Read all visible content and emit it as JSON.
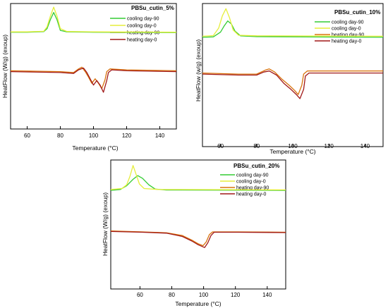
{
  "colors": {
    "cooling_day_90": "#33cc33",
    "cooling_day_0": "#e6ee3b",
    "heating_day_90": "#d9730d",
    "heating_day_0": "#a01818"
  },
  "chart_data": [
    {
      "type": "line",
      "title": "PBSu_cutin_5%",
      "xlabel": "Temperature (°C)",
      "ylabel": "HeatFlow (W/g) (exoup)",
      "xlim": [
        50,
        150
      ],
      "x_ticks": [
        "60",
        "80",
        "100",
        "120",
        "140"
      ],
      "x_tick_values": [
        60,
        80,
        100,
        120,
        140
      ],
      "ylim": [
        -4.5,
        2.5
      ],
      "grid": false,
      "legend_position": "top-right",
      "series": [
        {
          "name": "cooling day-90",
          "color_key": "cooling_day_90",
          "points": [
            [
              50,
              0.9
            ],
            [
              60,
              0.9
            ],
            [
              70,
              0.93
            ],
            [
              72,
              1.1
            ],
            [
              74,
              1.6
            ],
            [
              76,
              2.0
            ],
            [
              78,
              1.6
            ],
            [
              80,
              1.0
            ],
            [
              84,
              0.92
            ],
            [
              100,
              0.9
            ],
            [
              150,
              0.88
            ]
          ]
        },
        {
          "name": "cooling day-0",
          "color_key": "cooling_day_0",
          "points": [
            [
              50,
              0.92
            ],
            [
              60,
              0.92
            ],
            [
              70,
              0.95
            ],
            [
              72,
              1.2
            ],
            [
              74,
              1.8
            ],
            [
              76,
              2.3
            ],
            [
              78,
              1.8
            ],
            [
              80,
              1.1
            ],
            [
              84,
              0.94
            ],
            [
              100,
              0.92
            ],
            [
              150,
              0.9
            ]
          ]
        },
        {
          "name": "heating day-90",
          "color_key": "heating_day_90",
          "points": [
            [
              50,
              -1.25
            ],
            [
              80,
              -1.3
            ],
            [
              88,
              -1.35
            ],
            [
              91,
              -1.15
            ],
            [
              93,
              -1.05
            ],
            [
              95,
              -1.3
            ],
            [
              97,
              -1.6
            ],
            [
              99,
              -1.95
            ],
            [
              101,
              -1.7
            ],
            [
              103,
              -1.95
            ],
            [
              105,
              -2.25
            ],
            [
              107,
              -1.75
            ],
            [
              108,
              -1.3
            ],
            [
              110,
              -1.15
            ],
            [
              120,
              -1.2
            ],
            [
              150,
              -1.25
            ]
          ]
        },
        {
          "name": "heating day-0",
          "color_key": "heating_day_0",
          "points": [
            [
              50,
              -1.3
            ],
            [
              80,
              -1.35
            ],
            [
              88,
              -1.4
            ],
            [
              91,
              -1.2
            ],
            [
              94,
              -1.1
            ],
            [
              96,
              -1.35
            ],
            [
              98,
              -1.7
            ],
            [
              100,
              -2.05
            ],
            [
              102,
              -1.8
            ],
            [
              104,
              -2.05
            ],
            [
              106,
              -2.45
            ],
            [
              108,
              -1.8
            ],
            [
              109,
              -1.35
            ],
            [
              111,
              -1.2
            ],
            [
              120,
              -1.25
            ],
            [
              150,
              -1.3
            ]
          ]
        }
      ]
    },
    {
      "type": "line",
      "title": "PBSu_cutin_10%",
      "xlabel": "Temperature (°C)",
      "ylabel": "HeatFlow (w/g) (exoup)",
      "xlim": [
        50,
        150
      ],
      "x_ticks": [
        "60",
        "80",
        "100",
        "120",
        "140"
      ],
      "x_tick_values": [
        60,
        80,
        100,
        120,
        140
      ],
      "ylim": [
        -4.5,
        2.5
      ],
      "grid": false,
      "legend_position": "top-right",
      "series": [
        {
          "name": "cooling day-90",
          "color_key": "cooling_day_90",
          "points": [
            [
              50,
              0.85
            ],
            [
              56,
              0.87
            ],
            [
              60,
              1.1
            ],
            [
              62,
              1.4
            ],
            [
              64,
              1.65
            ],
            [
              66,
              1.5
            ],
            [
              68,
              1.15
            ],
            [
              71,
              0.92
            ],
            [
              80,
              0.88
            ],
            [
              150,
              0.85
            ]
          ]
        },
        {
          "name": "cooling day-0",
          "color_key": "cooling_day_0",
          "points": [
            [
              50,
              0.9
            ],
            [
              56,
              0.93
            ],
            [
              59,
              1.3
            ],
            [
              61,
              1.9
            ],
            [
              63,
              2.25
            ],
            [
              65,
              1.8
            ],
            [
              67,
              1.2
            ],
            [
              70,
              0.95
            ],
            [
              80,
              0.92
            ],
            [
              150,
              0.9
            ]
          ]
        },
        {
          "name": "heating day-90",
          "color_key": "heating_day_90",
          "points": [
            [
              50,
              -0.9
            ],
            [
              70,
              -0.95
            ],
            [
              80,
              -0.95
            ],
            [
              85,
              -0.75
            ],
            [
              87,
              -0.7
            ],
            [
              90,
              -0.85
            ],
            [
              94,
              -1.2
            ],
            [
              98,
              -1.5
            ],
            [
              101,
              -1.75
            ],
            [
              103,
              -1.95
            ],
            [
              105,
              -1.5
            ],
            [
              106,
              -0.95
            ],
            [
              108,
              -0.8
            ],
            [
              120,
              -0.8
            ],
            [
              150,
              -0.8
            ]
          ]
        },
        {
          "name": "heating day-0",
          "color_key": "heating_day_0",
          "points": [
            [
              50,
              -0.95
            ],
            [
              70,
              -1.0
            ],
            [
              80,
              -1.0
            ],
            [
              84,
              -0.85
            ],
            [
              87,
              -0.8
            ],
            [
              91,
              -1.0
            ],
            [
              95,
              -1.4
            ],
            [
              99,
              -1.7
            ],
            [
              102,
              -1.95
            ],
            [
              104,
              -2.15
            ],
            [
              106,
              -1.7
            ],
            [
              107,
              -1.05
            ],
            [
              109,
              -0.9
            ],
            [
              120,
              -0.9
            ],
            [
              150,
              -0.9
            ]
          ]
        }
      ]
    },
    {
      "type": "line",
      "title": "PBSu_cutin_20%",
      "xlabel": "Temperature (°C)",
      "ylabel": "HeatFlow (W/g) (exoup)",
      "xlim": [
        40,
        150
      ],
      "x_ticks": [
        "60",
        "80",
        "100",
        "120",
        "140"
      ],
      "x_tick_values": [
        60,
        80,
        100,
        120,
        140
      ],
      "ylim": [
        -4.5,
        2.5
      ],
      "grid": false,
      "legend_position": "top-right",
      "series": [
        {
          "name": "cooling day-90",
          "color_key": "cooling_day_90",
          "points": [
            [
              40,
              0.85
            ],
            [
              46,
              0.9
            ],
            [
              50,
              1.1
            ],
            [
              54,
              1.45
            ],
            [
              57,
              1.65
            ],
            [
              60,
              1.5
            ],
            [
              64,
              1.15
            ],
            [
              68,
              0.92
            ],
            [
              75,
              0.87
            ],
            [
              150,
              0.85
            ]
          ]
        },
        {
          "name": "cooling day-0",
          "color_key": "cooling_day_0",
          "points": [
            [
              40,
              0.9
            ],
            [
              47,
              0.95
            ],
            [
              50,
              1.15
            ],
            [
              52,
              1.6
            ],
            [
              54,
              2.2
            ],
            [
              56,
              1.7
            ],
            [
              58,
              1.2
            ],
            [
              61,
              0.95
            ],
            [
              70,
              0.9
            ],
            [
              150,
              0.88
            ]
          ]
        },
        {
          "name": "heating day-90",
          "color_key": "heating_day_90",
          "points": [
            [
              40,
              -1.35
            ],
            [
              60,
              -1.4
            ],
            [
              75,
              -1.45
            ],
            [
              85,
              -1.6
            ],
            [
              91,
              -1.85
            ],
            [
              95,
              -2.05
            ],
            [
              98,
              -2.15
            ],
            [
              100,
              -1.95
            ],
            [
              102,
              -1.55
            ],
            [
              104,
              -1.4
            ],
            [
              120,
              -1.4
            ],
            [
              150,
              -1.42
            ]
          ]
        },
        {
          "name": "heating day-0",
          "color_key": "heating_day_0",
          "points": [
            [
              40,
              -1.38
            ],
            [
              60,
              -1.42
            ],
            [
              75,
              -1.47
            ],
            [
              85,
              -1.65
            ],
            [
              91,
              -1.9
            ],
            [
              95,
              -2.1
            ],
            [
              99,
              -2.25
            ],
            [
              101,
              -2.0
            ],
            [
              103,
              -1.6
            ],
            [
              105,
              -1.42
            ],
            [
              120,
              -1.42
            ],
            [
              150,
              -1.44
            ]
          ]
        }
      ]
    }
  ]
}
